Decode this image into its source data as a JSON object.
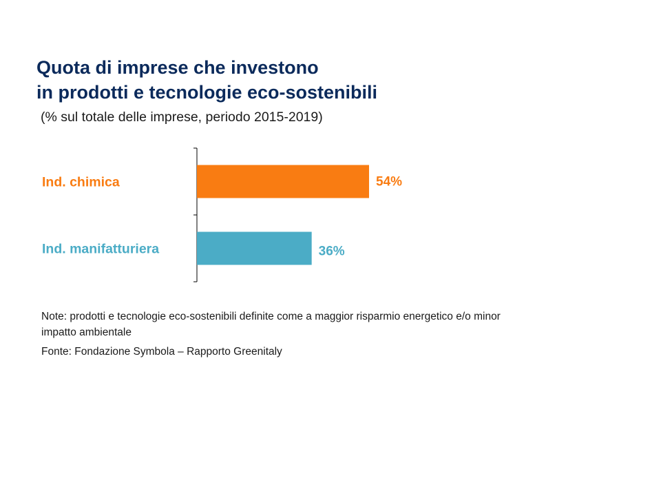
{
  "title": {
    "line1": "Quota di imprese che investono",
    "line2": "in prodotti e tecnologie eco-sostenibili"
  },
  "subtitle": "(% sul totale delle imprese, periodo 2015-2019)",
  "note": "Note: prodotti e tecnologie eco-sostenibili definite come a maggior risparmio energetico e/o minor impatto ambientale",
  "source": "Fonte: Fondazione Symbola – Rapporto Greenitaly",
  "chart_data": {
    "type": "bar",
    "orientation": "horizontal",
    "categories": [
      "Ind. chimica",
      "Ind. manifatturiera"
    ],
    "values": [
      54,
      36
    ],
    "value_labels": [
      "54%",
      "36%"
    ],
    "colors": [
      "#f97c12",
      "#4bacc6"
    ],
    "unit": "%",
    "xlim": [
      0,
      100
    ],
    "grid": false,
    "legend": "none"
  }
}
